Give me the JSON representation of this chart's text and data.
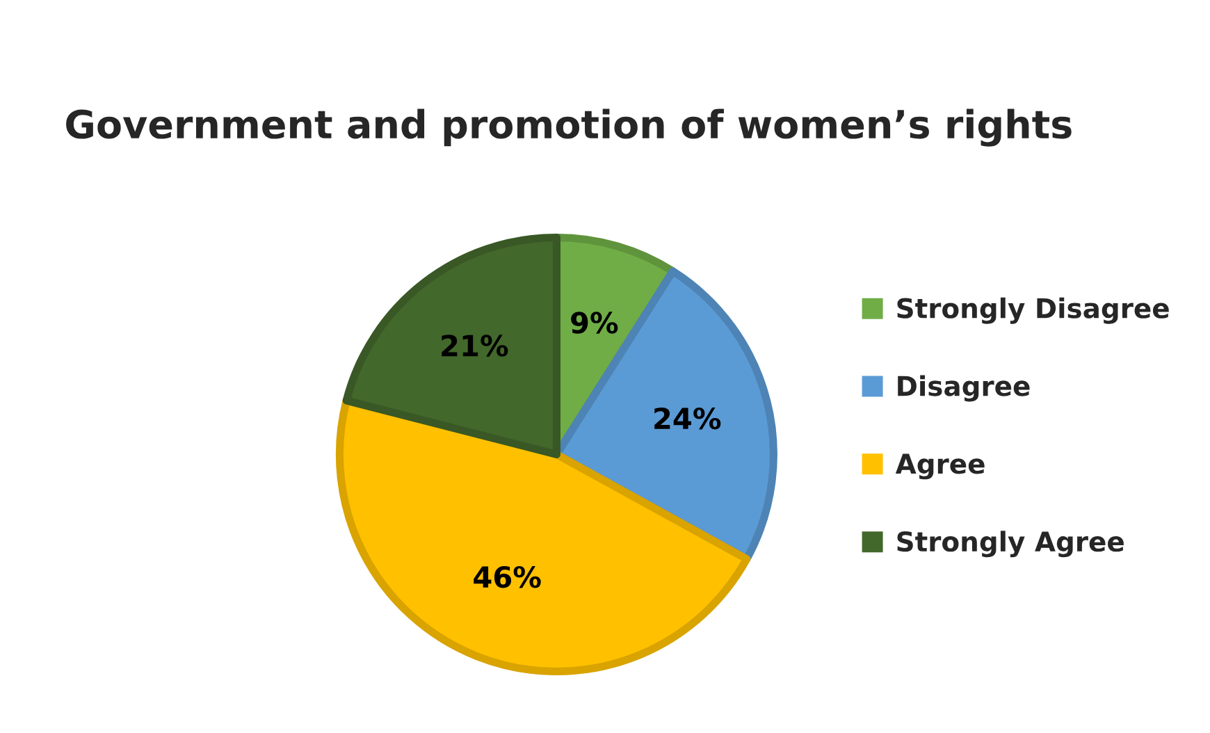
{
  "chart_data": {
    "type": "pie",
    "title": "Government and promotion of women’s rights",
    "categories": [
      "Strongly Disagree",
      "Disagree",
      "Agree",
      "Strongly Agree"
    ],
    "values": [
      9,
      24,
      46,
      21
    ],
    "value_labels": [
      "9%",
      "24%",
      "46%",
      "21%"
    ],
    "colors": [
      "#70ad47",
      "#5b9bd5",
      "#ffc000",
      "#43682b"
    ],
    "legend": "right"
  }
}
